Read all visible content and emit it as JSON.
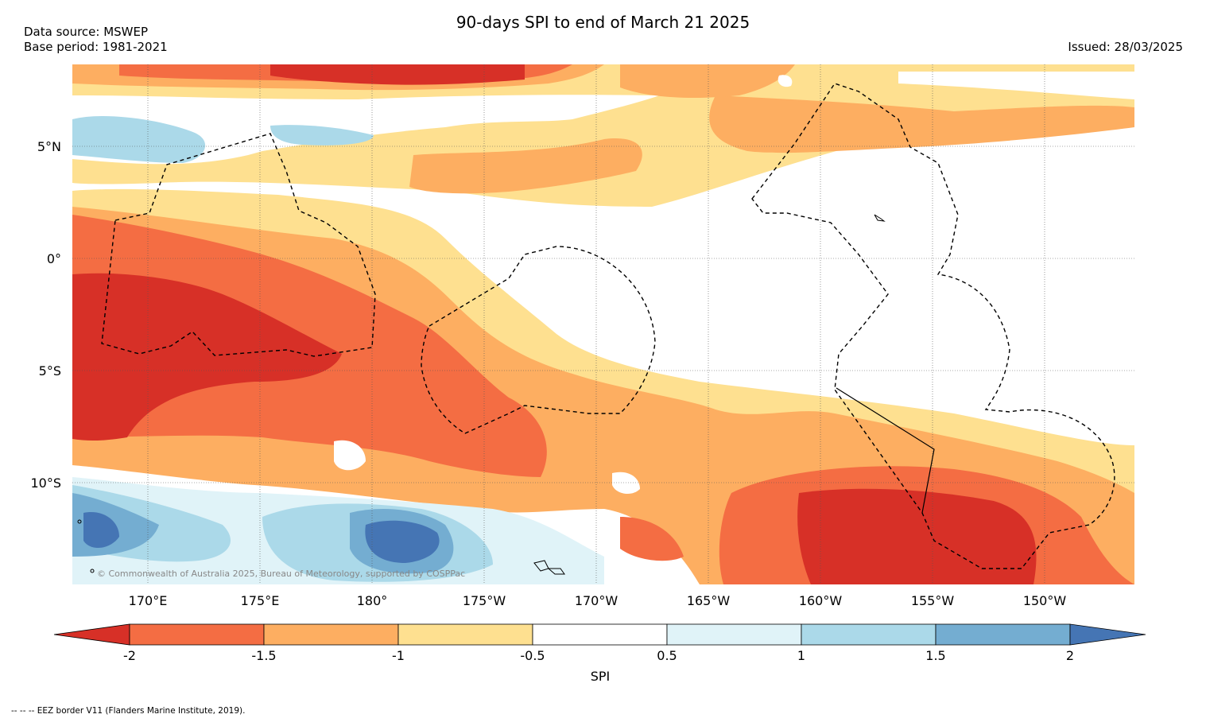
{
  "header": {
    "title": "90-days SPI to end of March 21 2025",
    "data_source": "Data source: MSWEP",
    "base_period": "Base period: 1981-2021",
    "issued": "Issued: 28/03/2025"
  },
  "map": {
    "lat_labels": [
      "5°N",
      "0°",
      "5°S",
      "10°S"
    ],
    "lon_labels": [
      "170°E",
      "175°E",
      "180°",
      "175°W",
      "170°W",
      "165°W",
      "160°W",
      "155°W",
      "150°W"
    ],
    "copyright": "© Commonwealth of Australia 2025, Bureau of Meteorology, supported by COSPPac"
  },
  "colorbar": {
    "label": "SPI",
    "ticks": [
      "-2",
      "-1.5",
      "-1",
      "-0.5",
      "0.5",
      "1",
      "1.5",
      "2"
    ],
    "colors": {
      "below_-2": "#d73027",
      "-2_-1.5": "#f46d43",
      "-1.5_-1": "#fdae61",
      "-1_-0.5": "#fee090",
      "-0.5_0.5": "#ffffff",
      "0.5_1": "#e0f3f8",
      "1_1.5": "#abd9e9",
      "1.5_2": "#74add1",
      "above_2": "#4575b4"
    }
  },
  "footer": {
    "legend": "--  --  -- EEZ border V11 (Flanders Marine Institute, 2019)."
  }
}
